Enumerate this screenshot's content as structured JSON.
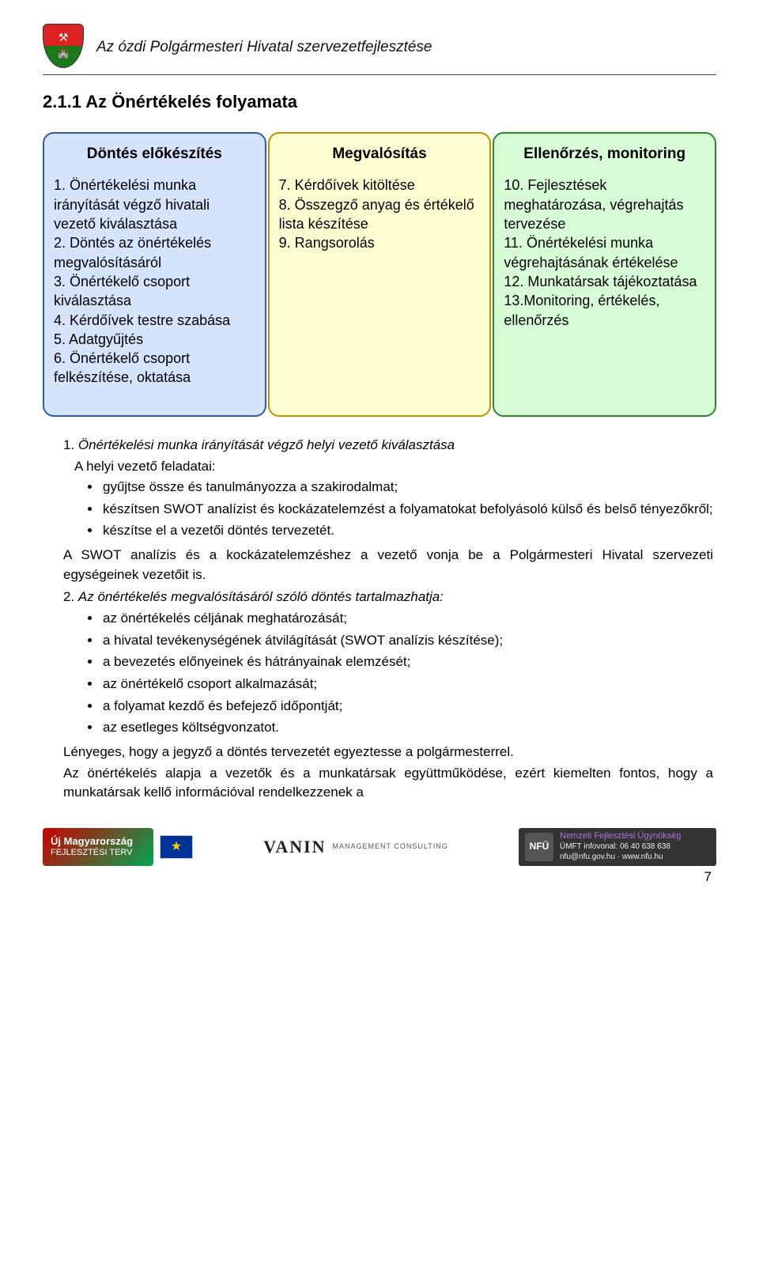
{
  "header": {
    "title": "Az ózdi Polgármesteri Hivatal szervezetfejlesztése"
  },
  "section": {
    "number_title": "2.1.1  Az Önértékelés folyamata"
  },
  "diagram": {
    "columns": [
      {
        "title": "Döntés előkészítés",
        "border_color": "#2b5bb0",
        "fill_color": "#d5e4fb",
        "text": "1. Önértékelési munka irányítását végző hivatali vezető kiválasztása\n2. Döntés az önértékelés megvalósításáról\n3. Önértékelő csoport kiválasztása\n4. Kérdőívek testre szabása\n5. Adatgyűjtés\n6. Önértékelő csoport felkészítése, oktatása"
      },
      {
        "title": "Megvalósítás",
        "border_color": "#c29100",
        "fill_color": "#ffffd2",
        "text": "7. Kérdőívek kitöltése\n8. Összegző anyag és értékelő lista készítése\n9. Rangsorolás"
      },
      {
        "title": "Ellenőrzés, monitoring",
        "border_color": "#2a8a2a",
        "fill_color": "#d7fdd7",
        "text": "10. Fejlesztések meghatározása, végrehajtás tervezése\n11. Önértékelési munka végrehajtásának értékelése\n12. Munkatársak tájékoztatása\n13.Monitoring, értékelés, ellenőrzés"
      }
    ]
  },
  "body": {
    "item1_title": "1. Önértékelési munka irányítását végző helyi vezető kiválasztása",
    "item1_lead": "A helyi vezető feladatai:",
    "item1_bullets": [
      "gyűjtse össze és tanulmányozza a szakirodalmat;",
      "készítsen SWOT analízist és kockázatelemzést a folyamatokat befolyásoló külső és belső tényezőkről;",
      "készítse el a vezetői döntés tervezetét."
    ],
    "item1_tail": "A SWOT analízis és a kockázatelemzéshez a vezető vonja be a Polgármesteri Hivatal szervezeti egységeinek vezetőit is.",
    "item2_title": "2. Az önértékelés megvalósításáról szóló döntés tartalmazhatja:",
    "item2_bullets": [
      "az önértékelés céljának meghatározását;",
      "a hivatal tevékenységének átvilágítását (SWOT analízis készítése);",
      "a bevezetés előnyeinek és hátrányainak elemzését;",
      "az önértékelő csoport alkalmazását;",
      "a folyamat kezdő és befejező időpontját;",
      "az esetleges költségvonzatot."
    ],
    "item2_tail1": "Lényeges, hogy a jegyző a döntés tervezetét egyeztesse a polgármesterrel.",
    "item2_tail2": "Az önértékelés alapja a vezetők és a munkatársak együttműködése, ezért kiemelten fontos, hogy a munkatársak kellő információval rendelkezzenek a"
  },
  "footer": {
    "umo_line1": "Új Magyarország",
    "umo_line2": "FEJLESZTÉSI TERV",
    "vanin_name": "VANIN",
    "vanin_sub": "MANAGEMENT CONSULTING",
    "nfu_line1": "Nemzeti Fejlesztési Ügynökség",
    "nfu_line2": "ÚMFT infovonal: 06 40 638 638",
    "nfu_line3": "nfu@nfu.gov.hu · www.nfu.hu",
    "nfu_badge": "NFÜ",
    "page_number": "7"
  }
}
